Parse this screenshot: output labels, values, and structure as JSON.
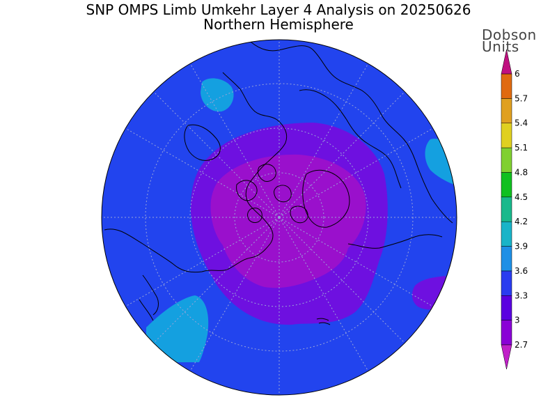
{
  "title": "SNP OMPS Limb Umkehr Layer 4 Analysis on 20250626",
  "subtitle": "Northern Hemisphere",
  "colorbar": {
    "units_line1": "Dobson",
    "units_line2": "Units",
    "levels": [
      "2.7",
      "3",
      "3.3",
      "3.6",
      "3.9",
      "4.2",
      "4.5",
      "4.8",
      "5.1",
      "5.4",
      "5.7",
      "6"
    ],
    "colors": [
      "#8a00d6",
      "#5a00e0",
      "#2a3cf0",
      "#1e8fe6",
      "#19b4c8",
      "#19b98c",
      "#10c020",
      "#80d030",
      "#e0d020",
      "#e0a020",
      "#e06a10",
      "#e00000"
    ],
    "under_color": "#c020c8",
    "over_color": "#c01080"
  },
  "map": {
    "projection": "north-polar-stereographic",
    "background_color": "#2244ee",
    "fields": {
      "low_core_color": "#9a10cc",
      "low_ring_color": "#6e10e0",
      "high_color": "#14a0e0"
    }
  }
}
